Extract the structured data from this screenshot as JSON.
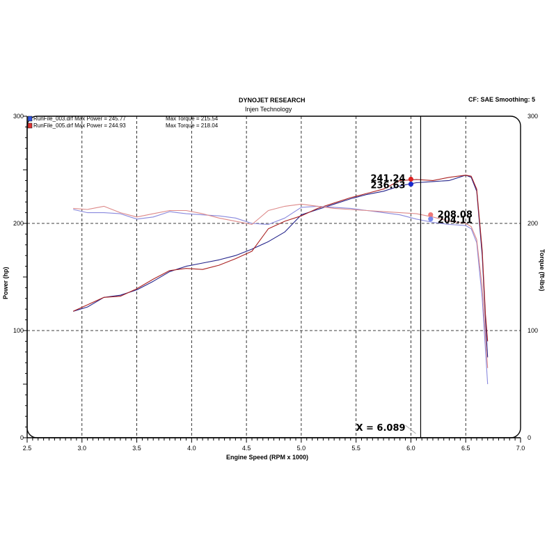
{
  "header": {
    "title": "DYNOJET RESEARCH",
    "subtitle": "Injen Technology",
    "cf_info": "CF: SAE  Smoothing: 5"
  },
  "chart_data": {
    "type": "line",
    "title": "DYNOJET RESEARCH",
    "subtitle": "Injen Technology",
    "xlabel": "Engine Speed (RPM x 1000)",
    "ylabel_left": "Power (hp)",
    "ylabel_right": "Torque (ft-lbs)",
    "xlim": [
      2.5,
      7.0
    ],
    "ylim": [
      0,
      300
    ],
    "x_ticks": [
      "2.5",
      "3.0",
      "3.5",
      "4.0",
      "4.5",
      "5.0",
      "5.5",
      "6.0",
      "6.5",
      "7.0"
    ],
    "y_ticks": [
      "0",
      "100",
      "200",
      "300"
    ],
    "grid": true,
    "legend_placement": "top-left",
    "legend": [
      {
        "text": "RunFile_003.drf Max Power = 245.77",
        "torque_text": "Max Torque = 215.54",
        "color": "#3355dd"
      },
      {
        "text": "RunFile_005.drf Max Power = 244.93",
        "torque_text": "Max Torque = 218.04",
        "color": "#dd3333"
      }
    ],
    "series": [
      {
        "name": "RunFile_003.drf",
        "kind": "power",
        "color": "#22228a",
        "x": [
          2.92,
          3.05,
          3.2,
          3.35,
          3.5,
          3.65,
          3.8,
          3.95,
          4.1,
          4.25,
          4.4,
          4.55,
          4.7,
          4.85,
          5.0,
          5.15,
          5.3,
          5.45,
          5.6,
          5.75,
          5.9,
          6.05,
          6.2,
          6.35,
          6.5,
          6.55,
          6.6,
          6.65,
          6.68,
          6.7
        ],
        "y": [
          118,
          122,
          131,
          133,
          138,
          146,
          155,
          160,
          163,
          166,
          170,
          176,
          183,
          192,
          208,
          213,
          218,
          223,
          227,
          230,
          235,
          238,
          239,
          240,
          245,
          243,
          230,
          170,
          110,
          75
        ]
      },
      {
        "name": "RunFile_005.drf",
        "kind": "power",
        "color": "#aa2020",
        "x": [
          2.92,
          3.05,
          3.2,
          3.35,
          3.5,
          3.65,
          3.8,
          3.95,
          4.1,
          4.25,
          4.4,
          4.55,
          4.7,
          4.85,
          5.0,
          5.15,
          5.3,
          5.45,
          5.6,
          5.75,
          5.9,
          6.05,
          6.2,
          6.35,
          6.5,
          6.55,
          6.6,
          6.65,
          6.68,
          6.7
        ],
        "y": [
          118,
          124,
          131,
          132,
          139,
          148,
          156,
          158,
          157,
          161,
          167,
          174,
          195,
          202,
          207,
          214,
          219,
          224,
          228,
          232,
          240,
          241,
          240,
          243,
          245,
          244,
          232,
          175,
          115,
          90
        ]
      },
      {
        "name": "RunFile_003.drf",
        "kind": "torque",
        "color": "#8888dd",
        "x": [
          2.92,
          3.05,
          3.2,
          3.35,
          3.5,
          3.65,
          3.8,
          3.95,
          4.1,
          4.25,
          4.4,
          4.55,
          4.7,
          4.85,
          5.0,
          5.15,
          5.3,
          5.45,
          5.6,
          5.75,
          5.9,
          6.05,
          6.2,
          6.35,
          6.5,
          6.55,
          6.6,
          6.65,
          6.7
        ],
        "y": [
          213,
          210,
          210,
          209,
          204,
          206,
          211,
          209,
          208,
          207,
          205,
          200,
          199,
          205,
          215,
          216,
          215,
          214,
          212,
          210,
          208,
          204,
          201,
          199,
          198,
          195,
          182,
          130,
          50
        ]
      },
      {
        "name": "RunFile_005.drf",
        "kind": "torque",
        "color": "#dd8888",
        "x": [
          2.92,
          3.05,
          3.2,
          3.35,
          3.5,
          3.65,
          3.8,
          3.95,
          4.1,
          4.25,
          4.4,
          4.55,
          4.7,
          4.85,
          5.0,
          5.15,
          5.3,
          5.45,
          5.6,
          5.75,
          5.9,
          6.05,
          6.2,
          6.35,
          6.5,
          6.55,
          6.6,
          6.65,
          6.7
        ],
        "y": [
          214,
          213,
          216,
          210,
          206,
          209,
          212,
          212,
          209,
          205,
          202,
          199,
          212,
          216,
          218,
          216,
          214,
          213,
          212,
          211,
          210,
          209,
          206,
          202,
          200,
          197,
          185,
          140,
          65
        ]
      }
    ],
    "cursor": {
      "x": 6.089,
      "label": "X = 6.089",
      "markers": [
        {
          "value_text": "241.24",
          "y": 241.24,
          "color": "#dd2222"
        },
        {
          "value_text": "236.63",
          "y": 236.63,
          "color": "#1a2acc"
        },
        {
          "value_text": "208.08",
          "y": 208.08,
          "color": "#ee7777"
        },
        {
          "value_text": "204.11",
          "y": 204.11,
          "color": "#7788ee"
        }
      ]
    }
  }
}
